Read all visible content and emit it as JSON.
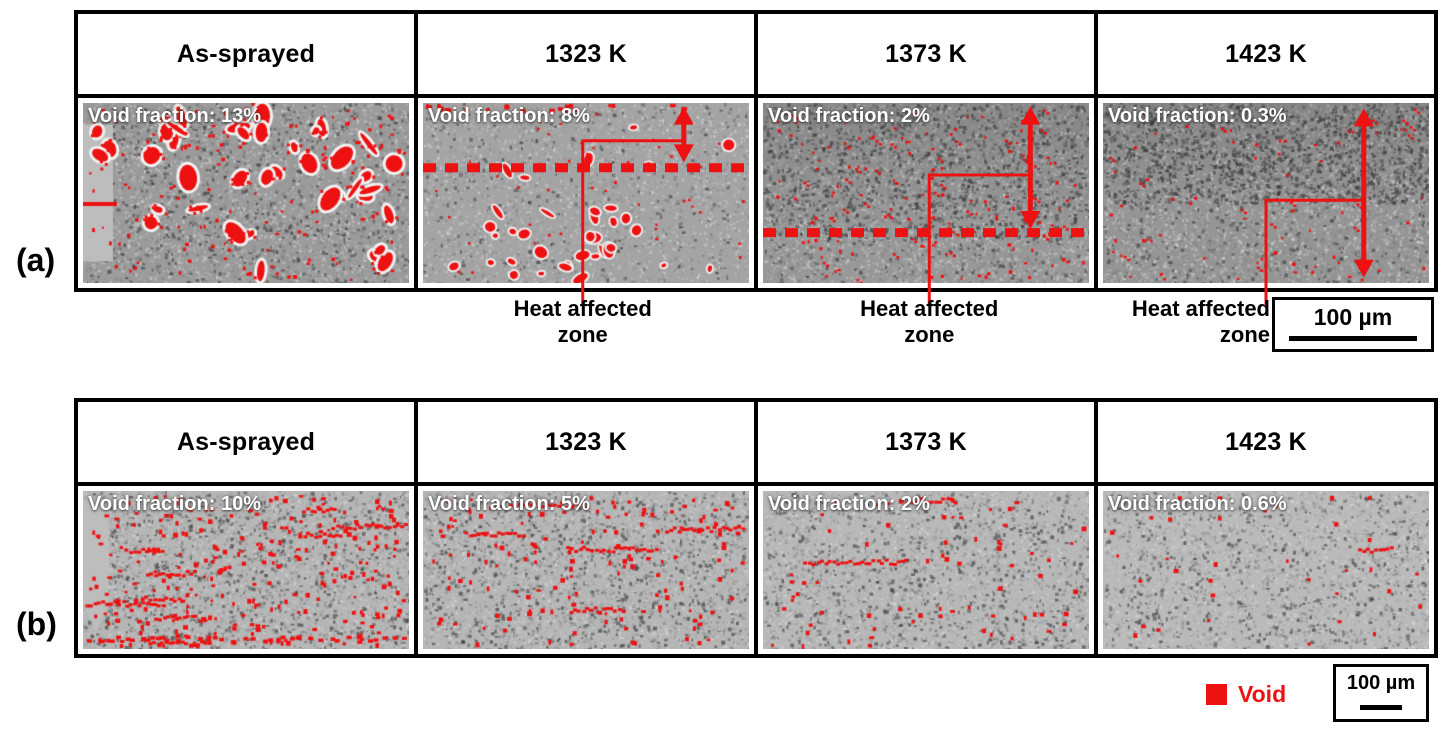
{
  "labels": {
    "a": "(a)",
    "b": "(b)"
  },
  "legend": {
    "label": "Void",
    "color": "#ee1111"
  },
  "rows": {
    "a": {
      "tag": "(a)",
      "scale_bar_label": "100 µm",
      "haz_line1": "Heat affected",
      "haz_line2": "zone",
      "panels": [
        {
          "header": "As-sprayed",
          "void_label": "Void fraction: 13%",
          "void_fraction_pct": 13
        },
        {
          "header": "1323 K",
          "void_label": "Void fraction: 8%",
          "void_fraction_pct": 8,
          "haz": true,
          "dashed_y": 0.36,
          "arrow": {
            "x": 0.8,
            "y1": 0.02,
            "y2": 0.33
          },
          "leader": {
            "x": 0.49,
            "y": 0.21,
            "x2": 0.8
          }
        },
        {
          "header": "1373 K",
          "void_label": "Void fraction: 2%",
          "void_fraction_pct": 2,
          "haz": true,
          "dashed_y": 0.72,
          "arrow": {
            "x": 0.82,
            "y1": 0.02,
            "y2": 0.7
          },
          "leader": {
            "x": 0.51,
            "y": 0.4,
            "x2": 0.82
          }
        },
        {
          "header": "1423 K",
          "void_label": "Void fraction: 0.3%",
          "void_fraction_pct": 0.3,
          "haz": true,
          "arrow": {
            "x": 0.8,
            "y1": 0.03,
            "y2": 0.97
          },
          "leader": {
            "x": 0.5,
            "y": 0.54,
            "x2": 0.8
          }
        }
      ]
    },
    "b": {
      "tag": "(b)",
      "scale_bar_label": "100 µm",
      "panels": [
        {
          "header": "As-sprayed",
          "void_label": "Void fraction: 10%",
          "void_fraction_pct": 10
        },
        {
          "header": "1323 K",
          "void_label": "Void fraction: 5%",
          "void_fraction_pct": 5
        },
        {
          "header": "1373 K",
          "void_label": "Void fraction: 2%",
          "void_fraction_pct": 2
        },
        {
          "header": "1423 K",
          "void_label": "Void fraction: 0.6%",
          "void_fraction_pct": 0.6
        }
      ]
    }
  }
}
